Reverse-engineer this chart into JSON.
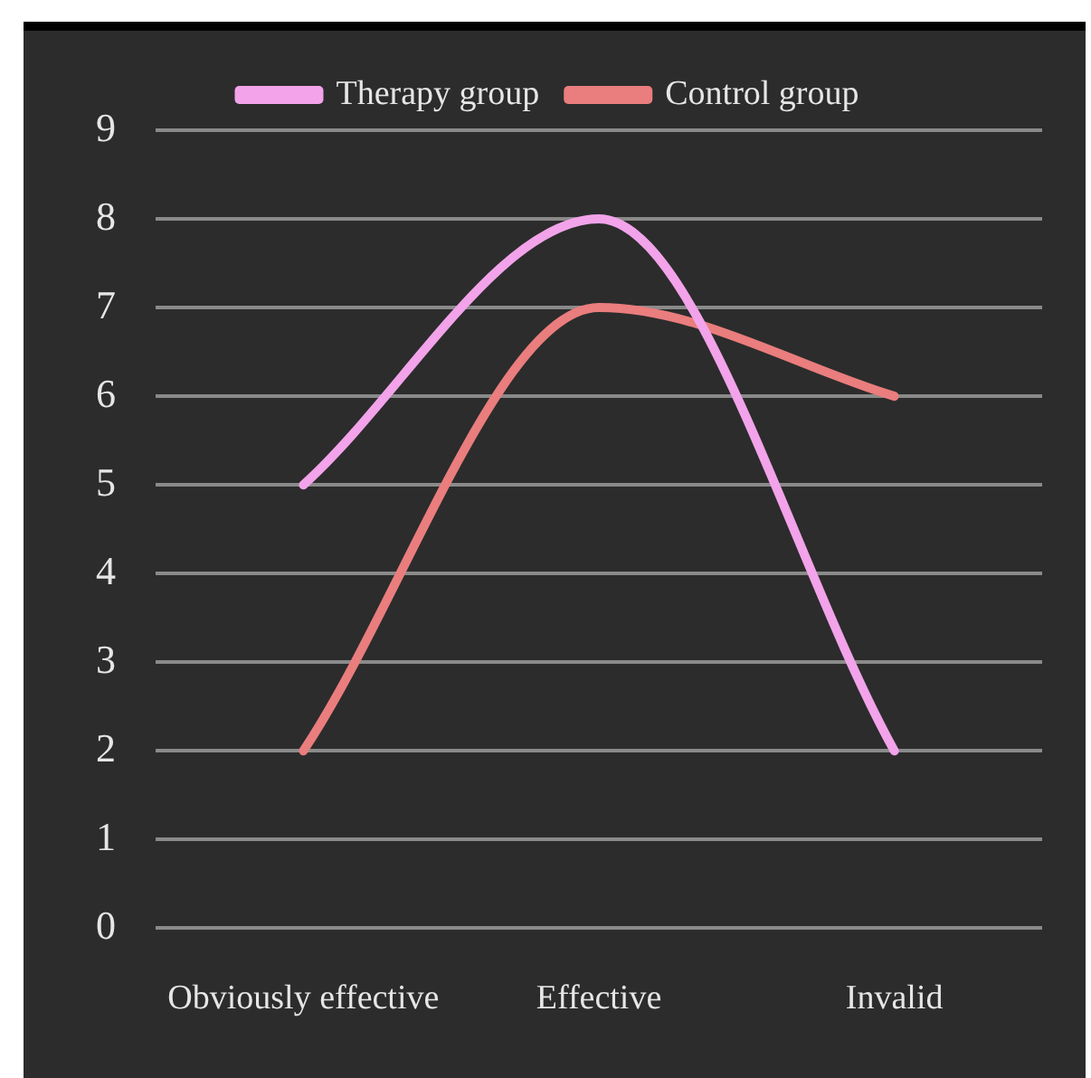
{
  "chart_data": {
    "type": "line",
    "categories": [
      "Obviously effective",
      "Effective",
      "Invalid"
    ],
    "series": [
      {
        "name": "Therapy group",
        "color": "#f2a3ea",
        "values": [
          5,
          8,
          2
        ]
      },
      {
        "name": "Control group",
        "color": "#ea7d7d",
        "values": [
          2,
          7,
          6
        ]
      }
    ],
    "ylim": [
      0,
      9
    ],
    "yticks": [
      0,
      1,
      2,
      3,
      4,
      5,
      6,
      7,
      8,
      9
    ],
    "grid": "y",
    "legend": "top",
    "marker": "none",
    "line_style": "solid"
  }
}
